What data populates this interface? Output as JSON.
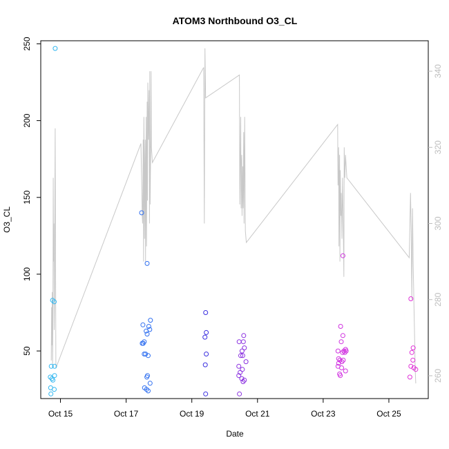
{
  "chart_data": {
    "type": "scatter",
    "title": "ATOM3 Northbound O3_CL",
    "xlabel": "Date",
    "ylabel": "O3_CL",
    "x_unit": "days (Oct 2017 day-of-month)",
    "xlim": [
      14.4,
      26.2
    ],
    "ylim": [
      19,
      252
    ],
    "y2lim": [
      254,
      348
    ],
    "x_ticks": [
      {
        "value": 15,
        "label": "Oct 15"
      },
      {
        "value": 17,
        "label": "Oct 17"
      },
      {
        "value": 19,
        "label": "Oct 19"
      },
      {
        "value": 21,
        "label": "Oct 21"
      },
      {
        "value": 23,
        "label": "Oct 23"
      },
      {
        "value": 25,
        "label": "Oct 25"
      }
    ],
    "y_ticks": [
      50,
      100,
      150,
      200,
      250
    ],
    "y2_ticks": [
      260,
      280,
      300,
      320,
      340
    ],
    "colors": {
      "line": "#c8c8c8",
      "axis": "#000000",
      "right_axis": "#bdbdbd",
      "flights": [
        "#2fb6f0",
        "#2f6ff0",
        "#3a2fe0",
        "#8a30e0",
        "#d030e0",
        "#e030d8"
      ]
    },
    "series": [
      {
        "color": "#2fb6f0",
        "points": [
          [
            14.84,
            247
          ],
          [
            14.76,
            83
          ],
          [
            14.81,
            82
          ],
          [
            14.72,
            40
          ],
          [
            14.82,
            40
          ],
          [
            14.82,
            34
          ],
          [
            14.74,
            32
          ],
          [
            14.69,
            33
          ],
          [
            14.77,
            31
          ],
          [
            14.7,
            26
          ],
          [
            14.81,
            25
          ],
          [
            14.71,
            22
          ]
        ]
      },
      {
        "color": "#2f6ff0",
        "points": [
          [
            17.47,
            140
          ],
          [
            17.64,
            107
          ],
          [
            17.51,
            67
          ],
          [
            17.74,
            70
          ],
          [
            17.69,
            66
          ],
          [
            17.72,
            64
          ],
          [
            17.61,
            63
          ],
          [
            17.64,
            61
          ],
          [
            17.55,
            56
          ],
          [
            17.49,
            55
          ],
          [
            17.52,
            55
          ],
          [
            17.59,
            48
          ],
          [
            17.55,
            48
          ],
          [
            17.67,
            47
          ],
          [
            17.65,
            34
          ],
          [
            17.63,
            33
          ],
          [
            17.73,
            29
          ],
          [
            17.56,
            26
          ],
          [
            17.62,
            25
          ],
          [
            17.67,
            24
          ]
        ]
      },
      {
        "color": "#3a2fe0",
        "points": [
          [
            19.42,
            75
          ],
          [
            19.44,
            62
          ],
          [
            19.4,
            59
          ],
          [
            19.44,
            48
          ],
          [
            19.41,
            41
          ],
          [
            19.42,
            22
          ]
        ]
      },
      {
        "color": "#8a30e0",
        "points": [
          [
            20.58,
            60
          ],
          [
            20.44,
            56
          ],
          [
            20.57,
            56
          ],
          [
            20.6,
            52
          ],
          [
            20.53,
            50
          ],
          [
            20.55,
            47
          ],
          [
            20.49,
            47
          ],
          [
            20.65,
            43
          ],
          [
            20.43,
            40
          ],
          [
            20.54,
            38
          ],
          [
            20.47,
            36
          ],
          [
            20.43,
            34
          ],
          [
            20.52,
            32
          ],
          [
            20.6,
            31
          ],
          [
            20.56,
            30
          ],
          [
            20.45,
            22
          ]
        ]
      },
      {
        "color": "#d030e0",
        "points": [
          [
            23.6,
            112
          ],
          [
            23.53,
            66
          ],
          [
            23.6,
            60
          ],
          [
            23.55,
            56
          ],
          [
            23.45,
            50
          ],
          [
            23.68,
            51
          ],
          [
            23.63,
            50
          ],
          [
            23.66,
            49
          ],
          [
            23.59,
            49
          ],
          [
            23.7,
            50
          ],
          [
            23.47,
            45
          ],
          [
            23.51,
            44
          ],
          [
            23.47,
            42
          ],
          [
            23.61,
            44
          ],
          [
            23.57,
            43
          ],
          [
            23.45,
            40
          ],
          [
            23.56,
            39
          ],
          [
            23.68,
            37
          ],
          [
            23.5,
            35
          ],
          [
            23.52,
            34
          ]
        ]
      },
      {
        "color": "#e030d8",
        "points": [
          [
            25.67,
            84
          ],
          [
            25.74,
            52
          ],
          [
            25.7,
            49
          ],
          [
            25.73,
            44
          ],
          [
            25.67,
            40
          ],
          [
            25.76,
            39
          ],
          [
            25.82,
            38
          ],
          [
            25.64,
            33
          ]
        ]
      }
    ],
    "line_series": {
      "axis": "right",
      "points": [
        [
          14.72,
          264
        ],
        [
          14.73,
          278
        ],
        [
          14.74,
          268
        ],
        [
          14.75,
          282
        ],
        [
          14.76,
          262
        ],
        [
          14.77,
          275
        ],
        [
          14.78,
          312
        ],
        [
          14.79,
          290
        ],
        [
          14.8,
          300
        ],
        [
          14.81,
          272
        ],
        [
          14.82,
          280
        ],
        [
          14.83,
          305
        ],
        [
          14.84,
          325
        ],
        [
          14.86,
          262
        ],
        [
          17.45,
          321
        ],
        [
          17.47,
          312
        ],
        [
          17.49,
          302
        ],
        [
          17.5,
          300
        ],
        [
          17.51,
          311
        ],
        [
          17.52,
          322
        ],
        [
          17.53,
          290
        ],
        [
          17.54,
          328
        ],
        [
          17.55,
          318
        ],
        [
          17.56,
          296
        ],
        [
          17.57,
          312
        ],
        [
          17.58,
          322
        ],
        [
          17.59,
          290
        ],
        [
          17.6,
          309
        ],
        [
          17.61,
          328
        ],
        [
          17.62,
          294
        ],
        [
          17.64,
          332
        ],
        [
          17.65,
          306
        ],
        [
          17.66,
          337
        ],
        [
          17.68,
          322
        ],
        [
          17.7,
          335
        ],
        [
          17.71,
          300
        ],
        [
          17.72,
          340
        ],
        [
          17.73,
          305
        ],
        [
          17.75,
          322
        ],
        [
          17.76,
          340
        ],
        [
          17.77,
          320
        ],
        [
          17.8,
          316
        ],
        [
          19.36,
          341
        ],
        [
          19.38,
          300
        ],
        [
          19.4,
          346
        ],
        [
          19.42,
          333
        ],
        [
          20.45,
          339
        ],
        [
          20.46,
          305
        ],
        [
          20.48,
          322
        ],
        [
          20.49,
          328
        ],
        [
          20.5,
          304
        ],
        [
          20.51,
          315
        ],
        [
          20.52,
          318
        ],
        [
          20.53,
          302
        ],
        [
          20.55,
          315
        ],
        [
          20.56,
          304
        ],
        [
          20.58,
          324
        ],
        [
          20.59,
          300
        ],
        [
          20.61,
          328
        ],
        [
          20.63,
          298
        ],
        [
          20.66,
          295
        ],
        [
          23.44,
          326
        ],
        [
          23.45,
          310
        ],
        [
          23.47,
          320
        ],
        [
          23.48,
          294
        ],
        [
          23.49,
          312
        ],
        [
          23.5,
          318
        ],
        [
          23.51,
          290
        ],
        [
          23.52,
          314
        ],
        [
          23.54,
          302
        ],
        [
          23.55,
          308
        ],
        [
          23.57,
          296
        ],
        [
          23.59,
          312
        ],
        [
          23.61,
          300
        ],
        [
          23.63,
          286
        ],
        [
          23.64,
          320
        ],
        [
          23.66,
          312
        ],
        [
          23.68,
          318
        ],
        [
          23.72,
          312
        ],
        [
          25.62,
          291
        ],
        [
          25.64,
          300
        ],
        [
          25.66,
          308
        ],
        [
          25.68,
          298
        ],
        [
          25.7,
          280
        ],
        [
          25.72,
          304
        ],
        [
          25.74,
          290
        ],
        [
          25.76,
          280
        ],
        [
          25.78,
          272
        ],
        [
          25.8,
          262
        ],
        [
          25.82,
          258
        ]
      ]
    },
    "grid": false,
    "legend": "none"
  }
}
